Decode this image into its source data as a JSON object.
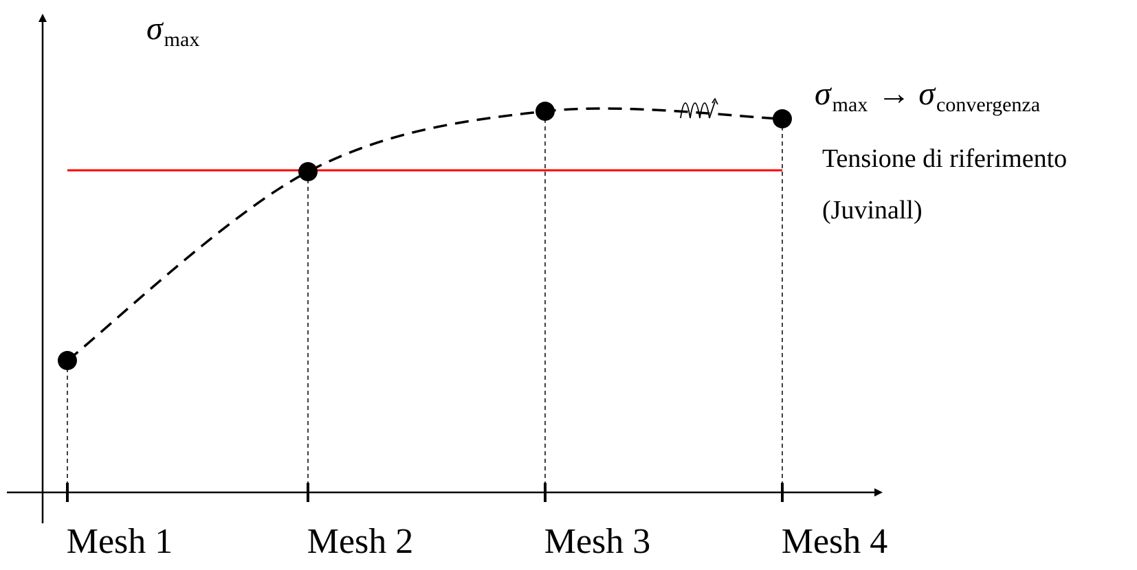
{
  "chart_data": {
    "type": "line",
    "categories": [
      "Mesh 1",
      "Mesh 2",
      "Mesh 3",
      "Mesh 4"
    ],
    "series": [
      {
        "values": [
          0.25,
          0.75,
          0.91,
          0.89
        ],
        "color": "#000000",
        "line_style": "dashed",
        "marker": "circle"
      }
    ],
    "reference_line": {
      "value": 0.75,
      "color": "#ff0000",
      "label_lines": [
        "Tensione di riferimento",
        "(Juvinall)"
      ]
    },
    "ylabel": {
      "symbol": "σ",
      "subscript": "max"
    },
    "convergence_label": {
      "left_symbol": "σ",
      "left_subscript": "max",
      "arrow": "→",
      "right_symbol": "σ",
      "right_subscript": "convergenza"
    },
    "ylim": [
      0,
      1
    ],
    "grid": false,
    "legend": "none",
    "drop_lines": true
  }
}
